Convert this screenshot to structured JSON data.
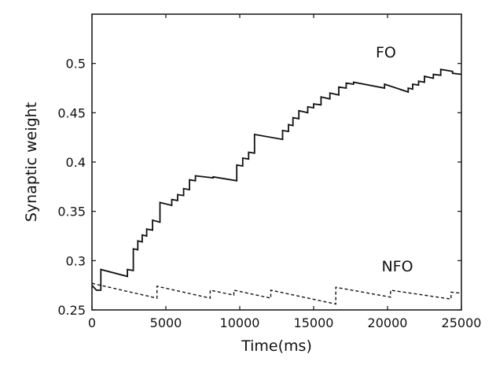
{
  "chart_data": {
    "type": "line",
    "xlabel": "Time(ms)",
    "ylabel": "Synaptic weight",
    "xlim": [
      0,
      25000
    ],
    "ylim": [
      0.25,
      0.55
    ],
    "x_ticks": [
      0,
      5000,
      10000,
      15000,
      20000,
      25000
    ],
    "x_tick_labels": [
      "0",
      "5000",
      "10000",
      "15000",
      "20000",
      "25000"
    ],
    "y_ticks": [
      0.25,
      0.3,
      0.35,
      0.4,
      0.45,
      0.5
    ],
    "y_tick_labels": [
      "0.25",
      "0.3",
      "0.35",
      "0.4",
      "0.45",
      "0.5"
    ],
    "grid": false,
    "legend": "none",
    "series": [
      {
        "name": "FO",
        "style": "solid",
        "color": "#111111",
        "points": [
          [
            0,
            0.275
          ],
          [
            300,
            0.27
          ],
          [
            600,
            0.27
          ],
          [
            600,
            0.291
          ],
          [
            2400,
            0.284
          ],
          [
            2400,
            0.291
          ],
          [
            2800,
            0.29
          ],
          [
            2800,
            0.312
          ],
          [
            3100,
            0.311
          ],
          [
            3100,
            0.32
          ],
          [
            3400,
            0.319
          ],
          [
            3400,
            0.326
          ],
          [
            3700,
            0.325
          ],
          [
            3700,
            0.332
          ],
          [
            4100,
            0.331
          ],
          [
            4100,
            0.341
          ],
          [
            4600,
            0.339
          ],
          [
            4600,
            0.359
          ],
          [
            5400,
            0.356
          ],
          [
            5400,
            0.362
          ],
          [
            5800,
            0.361
          ],
          [
            5800,
            0.367
          ],
          [
            6200,
            0.366
          ],
          [
            6200,
            0.373
          ],
          [
            6600,
            0.372
          ],
          [
            6600,
            0.382
          ],
          [
            7000,
            0.381
          ],
          [
            7000,
            0.386
          ],
          [
            8200,
            0.384
          ],
          [
            8200,
            0.385
          ],
          [
            9800,
            0.381
          ],
          [
            9800,
            0.397
          ],
          [
            10200,
            0.396
          ],
          [
            10200,
            0.404
          ],
          [
            10600,
            0.403
          ],
          [
            10600,
            0.41
          ],
          [
            11000,
            0.409
          ],
          [
            11000,
            0.428
          ],
          [
            12900,
            0.423
          ],
          [
            12900,
            0.432
          ],
          [
            13300,
            0.431
          ],
          [
            13300,
            0.438
          ],
          [
            13600,
            0.437
          ],
          [
            13600,
            0.445
          ],
          [
            14000,
            0.444
          ],
          [
            14000,
            0.452
          ],
          [
            14600,
            0.45
          ],
          [
            14600,
            0.456
          ],
          [
            15000,
            0.455
          ],
          [
            15000,
            0.459
          ],
          [
            15500,
            0.458
          ],
          [
            15500,
            0.466
          ],
          [
            16100,
            0.464
          ],
          [
            16100,
            0.47
          ],
          [
            16700,
            0.468
          ],
          [
            16700,
            0.476
          ],
          [
            17200,
            0.475
          ],
          [
            17200,
            0.48
          ],
          [
            17700,
            0.479
          ],
          [
            17700,
            0.481
          ],
          [
            19800,
            0.475
          ],
          [
            19800,
            0.479
          ],
          [
            21400,
            0.471
          ],
          [
            21400,
            0.475
          ],
          [
            21700,
            0.474
          ],
          [
            21700,
            0.479
          ],
          [
            22100,
            0.478
          ],
          [
            22100,
            0.482
          ],
          [
            22500,
            0.481
          ],
          [
            22500,
            0.487
          ],
          [
            23100,
            0.485
          ],
          [
            23100,
            0.489
          ],
          [
            23600,
            0.488
          ],
          [
            23600,
            0.494
          ],
          [
            24400,
            0.492
          ],
          [
            24400,
            0.49
          ],
          [
            25000,
            0.489
          ]
        ]
      },
      {
        "name": "NFO",
        "style": "dashed",
        "color": "#111111",
        "points": [
          [
            0,
            0.277
          ],
          [
            4400,
            0.262
          ],
          [
            4400,
            0.274
          ],
          [
            8000,
            0.262
          ],
          [
            8000,
            0.27
          ],
          [
            9600,
            0.265
          ],
          [
            9600,
            0.27
          ],
          [
            12100,
            0.262
          ],
          [
            12100,
            0.27
          ],
          [
            16500,
            0.256
          ],
          [
            16500,
            0.273
          ],
          [
            20200,
            0.263
          ],
          [
            20200,
            0.27
          ],
          [
            24300,
            0.261
          ],
          [
            24300,
            0.268
          ],
          [
            25000,
            0.267
          ]
        ]
      }
    ],
    "annotations": [
      {
        "text": "FO",
        "x": 19200,
        "y": 0.506,
        "series": "FO"
      },
      {
        "text": "NFO",
        "x": 19600,
        "y": 0.289,
        "series": "NFO"
      }
    ]
  }
}
